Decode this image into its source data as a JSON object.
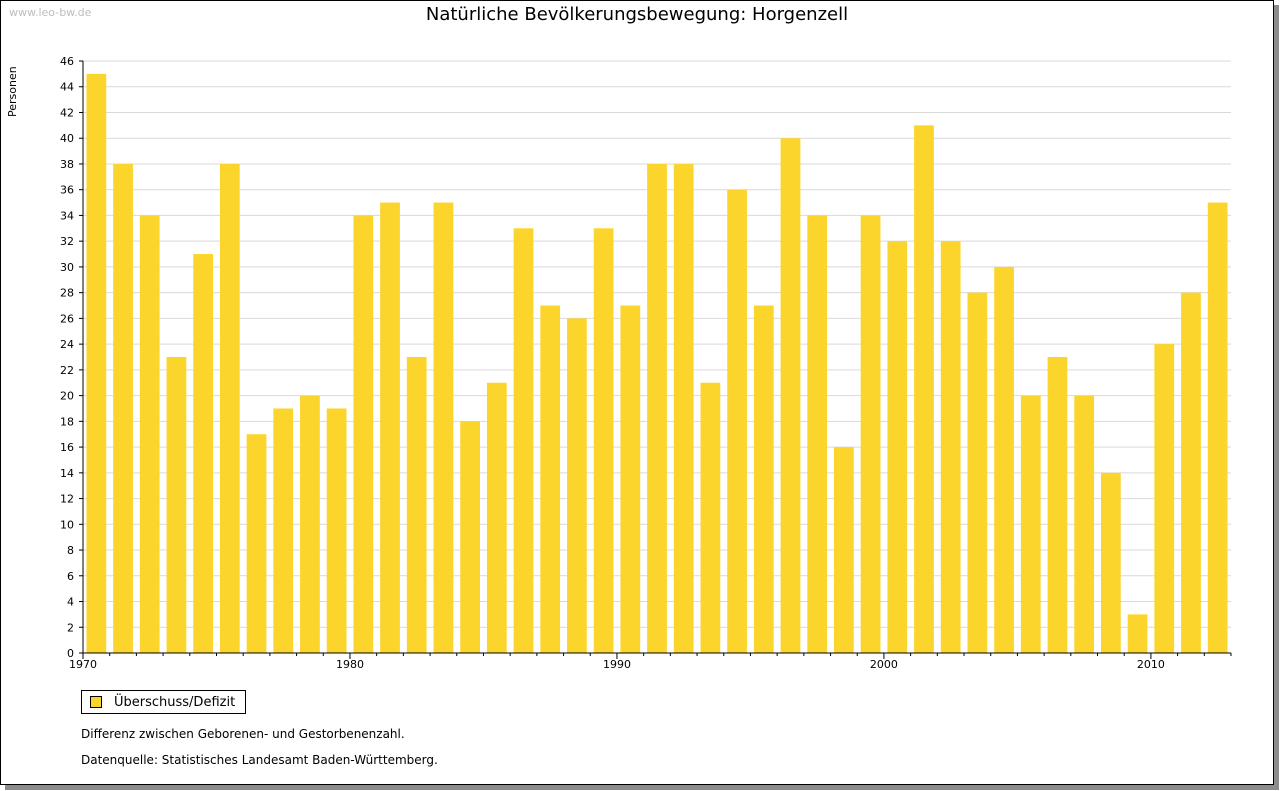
{
  "watermark": "www.leo-bw.de",
  "colors": {
    "bar": "#fcd52c",
    "grid": "#d9d9d9",
    "axis": "#000000"
  },
  "legend": {
    "label": "Überschuss/Defizit"
  },
  "notes": {
    "description": "Differenz zwischen Geborenen- und Gestorbenenzahl.",
    "source": "Datenquelle: Statistisches Landesamt Baden-Württemberg."
  },
  "chart_data": {
    "type": "bar",
    "title": "Natürliche Bevölkerungsbewegung: Horgenzell",
    "xlabel": "",
    "ylabel": "Personen",
    "ylim": [
      0,
      46
    ],
    "yticks": [
      0,
      2,
      4,
      6,
      8,
      10,
      12,
      14,
      16,
      18,
      20,
      22,
      24,
      26,
      28,
      30,
      32,
      34,
      36,
      38,
      40,
      42,
      44,
      46
    ],
    "xticks": [
      1970,
      1980,
      1990,
      2000,
      2010
    ],
    "grid": true,
    "legend_position": "bottom-left",
    "categories": [
      1970,
      1971,
      1972,
      1973,
      1974,
      1975,
      1976,
      1977,
      1978,
      1979,
      1980,
      1981,
      1982,
      1983,
      1984,
      1985,
      1986,
      1987,
      1988,
      1989,
      1990,
      1991,
      1992,
      1993,
      1994,
      1995,
      1996,
      1997,
      1998,
      1999,
      2000,
      2001,
      2002,
      2003,
      2004,
      2005,
      2006,
      2007,
      2008,
      2009,
      2010,
      2011,
      2012
    ],
    "series": [
      {
        "name": "Überschuss/Defizit",
        "values": [
          45,
          38,
          34,
          23,
          31,
          38,
          17,
          19,
          20,
          19,
          34,
          35,
          23,
          35,
          18,
          21,
          33,
          27,
          26,
          33,
          27,
          38,
          38,
          21,
          36,
          27,
          40,
          34,
          16,
          34,
          32,
          41,
          32,
          28,
          30,
          20,
          23,
          20,
          14,
          3,
          24,
          28,
          35
        ]
      }
    ]
  }
}
